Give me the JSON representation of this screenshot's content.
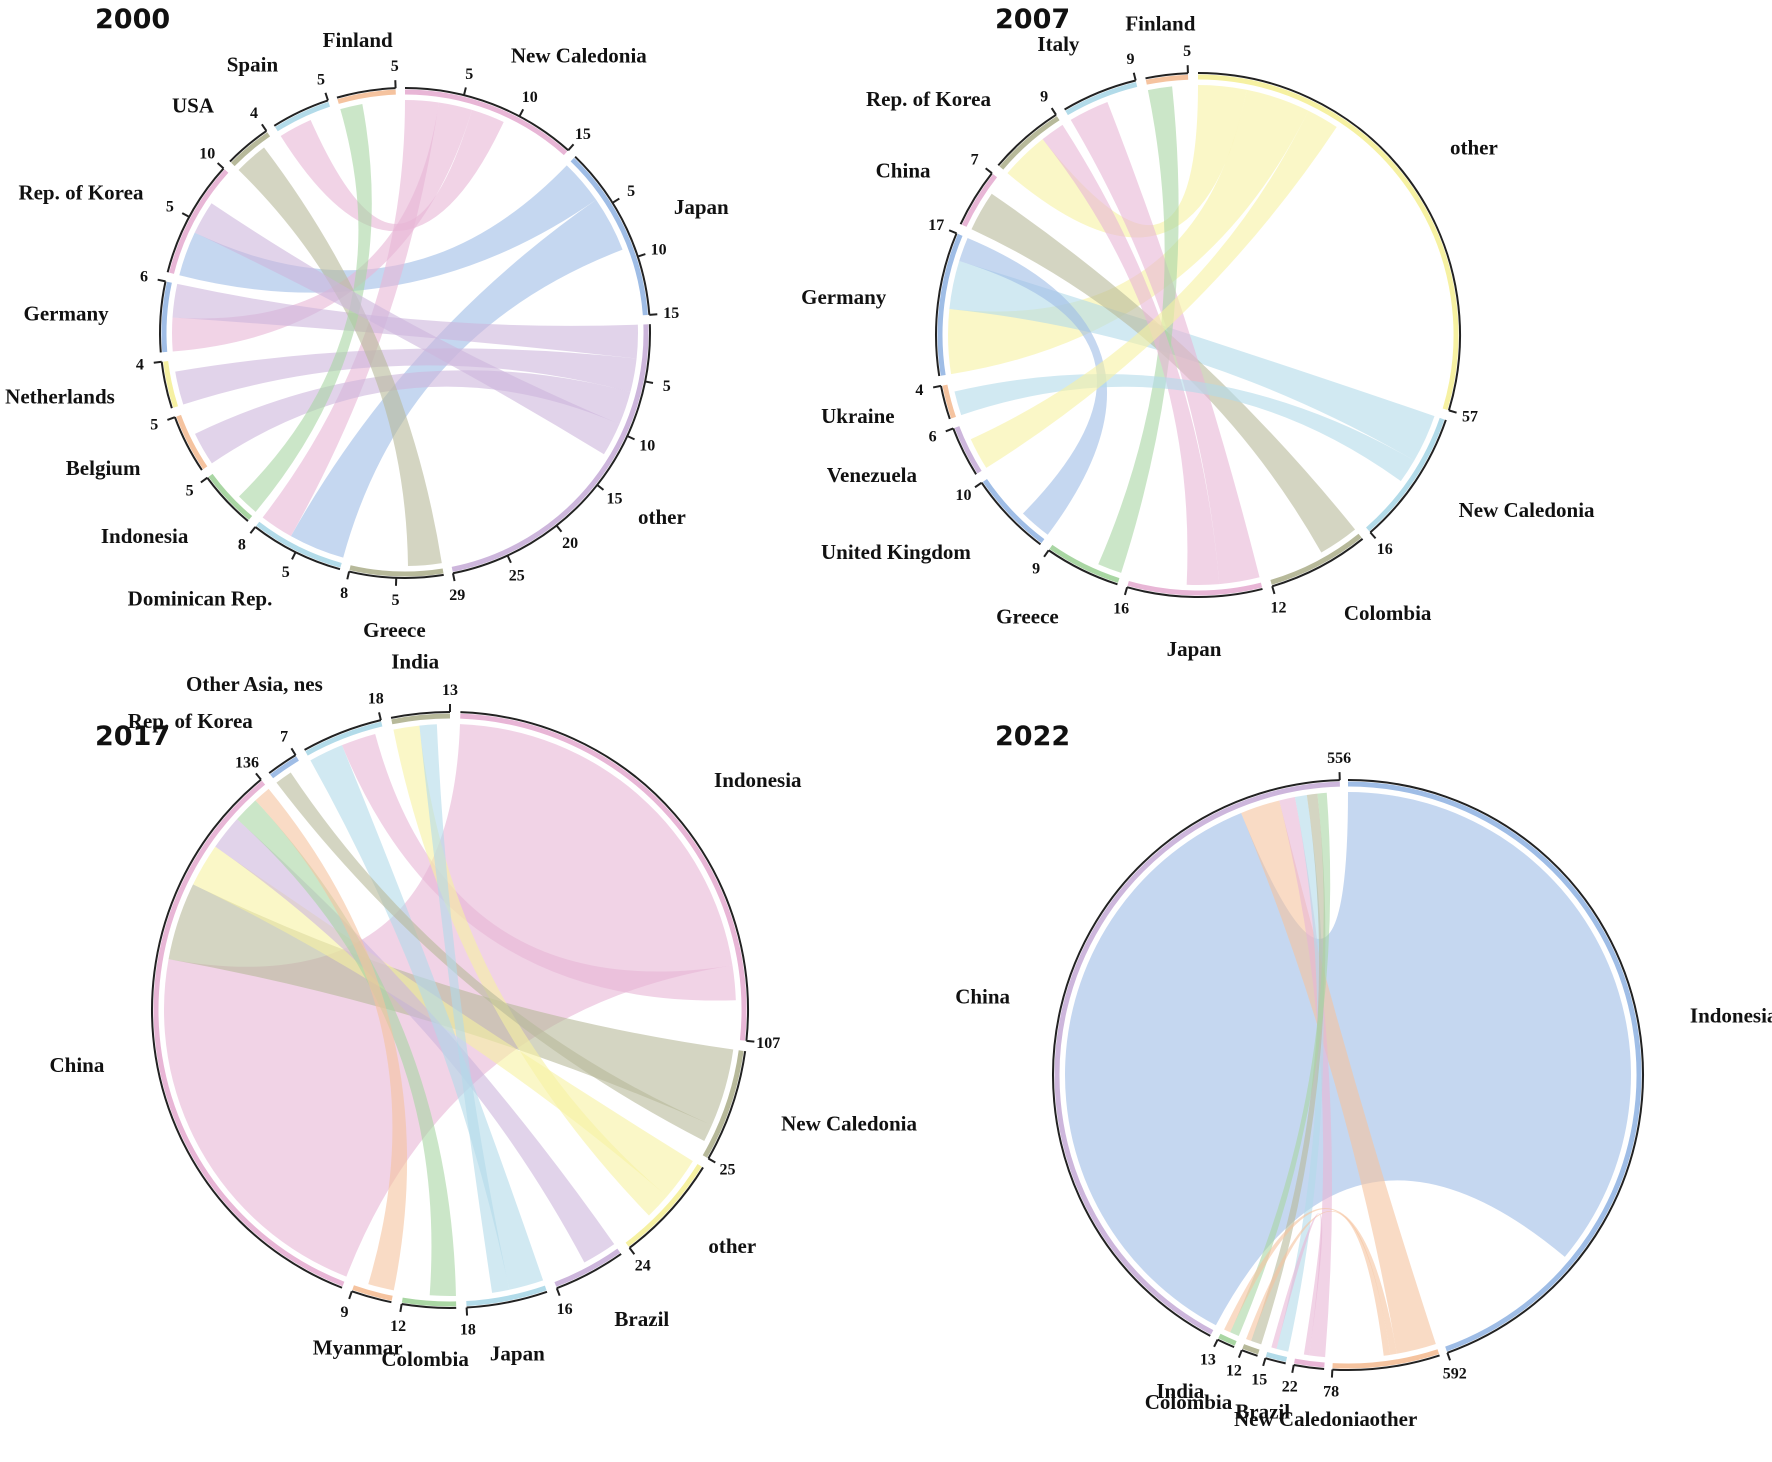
{
  "figure": {
    "colors": {
      "pink": "#e8b6d6",
      "blue": "#9fbde6",
      "green": "#a9d6a3",
      "olive": "#b7b99a",
      "lightblue": "#b2dbe9",
      "yellow": "#f6f1a2",
      "orange": "#f5c39f",
      "purple": "#cdb6dc",
      "ring": "#222222"
    }
  },
  "chart_data": [
    {
      "type": "chord",
      "title": "2000",
      "segments": [
        {
          "label": "New Caledonia",
          "color": "pink",
          "value": 15,
          "ticks": [
            "5",
            "10",
            "15"
          ]
        },
        {
          "label": "Japan",
          "color": "blue",
          "value": 15,
          "ticks": [
            "5",
            "10",
            "15"
          ]
        },
        {
          "label": "other",
          "color": "purple",
          "value": 29,
          "ticks": [
            "5",
            "10",
            "15",
            "20",
            "25",
            "29"
          ]
        },
        {
          "label": "Greece",
          "color": "olive",
          "value": 8,
          "ticks": [
            "5",
            "8"
          ]
        },
        {
          "label": "Dominican Rep.",
          "color": "lightblue",
          "value": 8,
          "ticks": [
            "5",
            "8"
          ]
        },
        {
          "label": "Indonesia",
          "color": "green",
          "value": 5,
          "ticks": [
            "5"
          ]
        },
        {
          "label": "Belgium",
          "color": "orange",
          "value": 5,
          "ticks": [
            "5"
          ]
        },
        {
          "label": "Netherlands",
          "color": "yellow",
          "value": 4,
          "ticks": [
            "4"
          ]
        },
        {
          "label": "Germany",
          "color": "blue",
          "value": 6,
          "ticks": [
            "6"
          ]
        },
        {
          "label": "Rep. of Korea",
          "color": "pink",
          "value": 10,
          "ticks": [
            "5",
            "10"
          ]
        },
        {
          "label": "USA",
          "color": "olive",
          "value": 4,
          "ticks": [
            "4"
          ]
        },
        {
          "label": "Spain",
          "color": "lightblue",
          "value": 5,
          "ticks": [
            "5"
          ]
        },
        {
          "label": "Finland",
          "color": "orange",
          "value": 5,
          "ticks": [
            "5"
          ]
        }
      ],
      "links": [
        {
          "from": "Japan",
          "to": "Rep. of Korea",
          "value": 4
        },
        {
          "from": "Japan",
          "to": "Dominican Rep.",
          "value": 5
        },
        {
          "from": "New Caledonia",
          "to": "Dominican Rep.",
          "value": 3
        },
        {
          "from": "New Caledonia",
          "to": "Germany",
          "value": 3
        },
        {
          "from": "New Caledonia",
          "to": "Spain",
          "value": 3
        },
        {
          "from": "other",
          "to": "Germany",
          "value": 3
        },
        {
          "from": "other",
          "to": "Netherlands",
          "value": 3
        },
        {
          "from": "other",
          "to": "Belgium",
          "value": 3
        },
        {
          "from": "Greece",
          "to": "USA",
          "value": 3
        },
        {
          "from": "Indonesia",
          "to": "Finland",
          "value": 2
        },
        {
          "from": "other",
          "to": "Rep. of Korea",
          "value": 3
        }
      ]
    },
    {
      "type": "chord",
      "title": "2007",
      "segments": [
        {
          "label": "other",
          "color": "yellow",
          "value": 57,
          "ticks": [
            "57"
          ]
        },
        {
          "label": "New Caledonia",
          "color": "lightblue",
          "value": 16,
          "ticks": [
            "16"
          ]
        },
        {
          "label": "Colombia",
          "color": "olive",
          "value": 12,
          "ticks": [
            "12"
          ]
        },
        {
          "label": "Japan",
          "color": "pink",
          "value": 16,
          "ticks": [
            "16"
          ]
        },
        {
          "label": "Greece",
          "color": "green",
          "value": 9,
          "ticks": [
            "9"
          ]
        },
        {
          "label": "United Kingdom",
          "color": "blue",
          "value": 10,
          "ticks": [
            "10"
          ]
        },
        {
          "label": "Venezuela",
          "color": "purple",
          "value": 6,
          "ticks": [
            "6"
          ]
        },
        {
          "label": "Ukraine",
          "color": "orange",
          "value": 4,
          "ticks": [
            "4"
          ]
        },
        {
          "label": "Germany",
          "color": "blue",
          "value": 17,
          "ticks": [
            "17"
          ]
        },
        {
          "label": "China",
          "color": "pink",
          "value": 7,
          "ticks": [
            "7"
          ]
        },
        {
          "label": "Rep. of Korea",
          "color": "olive",
          "value": 9,
          "ticks": [
            "9"
          ]
        },
        {
          "label": "Italy",
          "color": "lightblue",
          "value": 9,
          "ticks": [
            "9"
          ]
        },
        {
          "label": "Finland",
          "color": "orange",
          "value": 5,
          "ticks": [
            "5"
          ]
        }
      ],
      "links": [
        {
          "from": "other",
          "to": "Rep. of Korea",
          "value": 6
        },
        {
          "from": "other",
          "to": "Germany",
          "value": 8
        },
        {
          "from": "New Caledonia",
          "to": "Germany",
          "value": 6
        },
        {
          "from": "Colombia",
          "to": "China",
          "value": 5
        },
        {
          "from": "Japan",
          "to": "Italy",
          "value": 5
        },
        {
          "from": "Greece",
          "to": "Finland",
          "value": 3
        },
        {
          "from": "United Kingdom",
          "to": "Germany",
          "value": 4
        },
        {
          "from": "Japan",
          "to": "Rep. of Korea",
          "value": 4
        },
        {
          "from": "New Caledonia",
          "to": "Ukraine",
          "value": 3
        },
        {
          "from": "other",
          "to": "Venezuela",
          "value": 4
        }
      ]
    },
    {
      "type": "chord",
      "title": "2017",
      "segments": [
        {
          "label": "Indonesia",
          "color": "pink",
          "value": 107,
          "ticks": [
            "107"
          ]
        },
        {
          "label": "New Caledonia",
          "color": "olive",
          "value": 25,
          "ticks": [
            "25"
          ]
        },
        {
          "label": "other",
          "color": "yellow",
          "value": 24,
          "ticks": [
            "24"
          ]
        },
        {
          "label": "Brazil",
          "color": "purple",
          "value": 16,
          "ticks": [
            "16"
          ]
        },
        {
          "label": "Japan",
          "color": "lightblue",
          "value": 18,
          "ticks": [
            "18"
          ]
        },
        {
          "label": "Colombia",
          "color": "green",
          "value": 12,
          "ticks": [
            "12"
          ]
        },
        {
          "label": "Myanmar",
          "color": "orange",
          "value": 9,
          "ticks": [
            "9"
          ]
        },
        {
          "label": "China",
          "color": "pink",
          "value": 136,
          "ticks": [
            "136"
          ]
        },
        {
          "label": "Rep. of Korea",
          "color": "blue",
          "value": 7,
          "ticks": [
            "7"
          ]
        },
        {
          "label": "Other Asia, nes",
          "color": "lightblue",
          "value": 18,
          "ticks": [
            "18"
          ]
        },
        {
          "label": "India",
          "color": "olive",
          "value": 13,
          "ticks": [
            "13"
          ]
        }
      ],
      "links": [
        {
          "from": "Indonesia",
          "to": "China",
          "value": 90
        },
        {
          "from": "New Caledonia",
          "to": "China",
          "value": 18
        },
        {
          "from": "other",
          "to": "China",
          "value": 10
        },
        {
          "from": "Brazil",
          "to": "China",
          "value": 8
        },
        {
          "from": "Japan",
          "to": "Other Asia, nes",
          "value": 8
        },
        {
          "from": "Colombia",
          "to": "China",
          "value": 6
        },
        {
          "from": "Myanmar",
          "to": "China",
          "value": 6
        },
        {
          "from": "Indonesia",
          "to": "Other Asia, nes",
          "value": 8
        },
        {
          "from": "other",
          "to": "India",
          "value": 6
        },
        {
          "from": "New Caledonia",
          "to": "Rep. of Korea",
          "value": 4
        },
        {
          "from": "Japan",
          "to": "India",
          "value": 4
        }
      ]
    },
    {
      "type": "chord",
      "title": "2022",
      "segments": [
        {
          "label": "Indonesia",
          "color": "blue",
          "value": 592,
          "ticks": [
            "592"
          ]
        },
        {
          "label": "other",
          "color": "orange",
          "value": 78,
          "ticks": [
            "78"
          ]
        },
        {
          "label": "New Caledonia",
          "color": "pink",
          "value": 22,
          "ticks": [
            "22"
          ]
        },
        {
          "label": "Brazil",
          "color": "lightblue",
          "value": 15,
          "ticks": [
            "15"
          ]
        },
        {
          "label": "Colombia",
          "color": "olive",
          "value": 12,
          "ticks": [
            "12"
          ]
        },
        {
          "label": "India",
          "color": "green",
          "value": 13,
          "ticks": [
            "13"
          ]
        },
        {
          "label": "China",
          "color": "purple",
          "value": 556,
          "ticks": [
            "556"
          ]
        }
      ],
      "links": [
        {
          "from": "Indonesia",
          "to": "China",
          "value": 480
        },
        {
          "from": "other",
          "to": "China",
          "value": 30
        },
        {
          "from": "New Caledonia",
          "to": "China",
          "value": 12
        },
        {
          "from": "Brazil",
          "to": "China",
          "value": 9
        },
        {
          "from": "Colombia",
          "to": "China",
          "value": 8
        },
        {
          "from": "India",
          "to": "China",
          "value": 7
        },
        {
          "from": "other",
          "to": "India",
          "value": 5
        },
        {
          "from": "other",
          "to": "Colombia",
          "value": 5
        },
        {
          "from": "New Caledonia",
          "to": "Brazil",
          "value": 4
        }
      ]
    }
  ]
}
